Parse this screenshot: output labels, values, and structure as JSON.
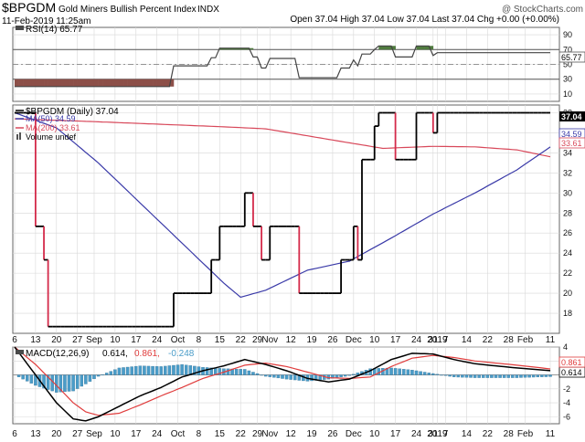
{
  "header": {
    "symbol": "$BPGDM",
    "name": "Gold Miners Bullish Percent Index",
    "exchange": "INDX",
    "watermark": "@ StockCharts.com",
    "datetime": "11-Feb-2019 11:25am",
    "quote": "Open 37.04  High 37.04  Low 37.04  Last 37.04  Chg +0.00 (+0.00%)"
  },
  "colors": {
    "price": "#000000",
    "price_down": "#d42a4a",
    "ma50": "#3a3aa8",
    "ma200": "#d8485a",
    "macd_line": "#000000",
    "macd_signal": "#e03c3c",
    "histogram": "#4a9cc8",
    "rsi_line": "#444444",
    "rsi_overbought_fill": "#4f7a3e",
    "rsi_oversold_fill": "#8c4f48",
    "grid": "#d8d8d8",
    "axis_text": "#111111"
  },
  "x_axis": {
    "ticks": [
      {
        "i": 0,
        "label": "6"
      },
      {
        "i": 5,
        "label": "13"
      },
      {
        "i": 10,
        "label": "20"
      },
      {
        "i": 15,
        "label": "27"
      },
      {
        "i": 19,
        "label": "Sep"
      },
      {
        "i": 24,
        "label": "10"
      },
      {
        "i": 29,
        "label": "17"
      },
      {
        "i": 34,
        "label": "24"
      },
      {
        "i": 39,
        "label": "Oct"
      },
      {
        "i": 44,
        "label": "8"
      },
      {
        "i": 49,
        "label": "15"
      },
      {
        "i": 54,
        "label": "22"
      },
      {
        "i": 58,
        "label": "29"
      },
      {
        "i": 61,
        "label": "Nov"
      },
      {
        "i": 66,
        "label": "12"
      },
      {
        "i": 71,
        "label": "19"
      },
      {
        "i": 76,
        "label": "26"
      },
      {
        "i": 81,
        "label": "Dec"
      },
      {
        "i": 86,
        "label": "10"
      },
      {
        "i": 91,
        "label": "17"
      },
      {
        "i": 96,
        "label": "24"
      },
      {
        "i": 100,
        "label": "31"
      },
      {
        "i": 101,
        "label": "2019"
      },
      {
        "i": 103,
        "label": "7"
      },
      {
        "i": 108,
        "label": "14"
      },
      {
        "i": 113,
        "label": "22"
      },
      {
        "i": 118,
        "label": "28"
      },
      {
        "i": 122,
        "label": "Feb"
      },
      {
        "i": 128,
        "label": "11"
      }
    ]
  },
  "rsi_panel": {
    "label": "RSI(14) 65.77",
    "ticks": [
      90,
      70,
      50,
      30,
      10
    ],
    "current": "65.77",
    "overbought": 70,
    "oversold": 30
  },
  "price_panel": {
    "legend_price": "$BPGDM (Daily) 37.04",
    "legend_ma50": "MA(50) 34.59",
    "legend_ma200": "MA(200) 33.61",
    "legend_volume": "Volume undef",
    "ticks": [
      38,
      36,
      34,
      32,
      30,
      28,
      26,
      24,
      22,
      20,
      18
    ],
    "tag_price": "37.04",
    "tag_ma50": "34.59",
    "tag_ma200": "33.61"
  },
  "macd_panel": {
    "label_prefix": "MACD(12,26,9)",
    "label_macd": "0.614,",
    "label_signal": "0.861,",
    "label_hist": "-0.248",
    "ticks": [
      4,
      2,
      -2,
      -4,
      -6
    ],
    "tag_macd": "0.614",
    "tag_signal": "0.861"
  },
  "chart_data": {
    "type": "line",
    "title": "$BPGDM Gold Miners Bullish Percent Index INDX",
    "n_sessions": 129,
    "price": {
      "name": "$BPGDM (Daily)",
      "ylim": [
        16,
        38.5
      ],
      "steps": [
        [
          0,
          38
        ],
        [
          5,
          26.67
        ],
        [
          7,
          23.33
        ],
        [
          8,
          16.67
        ],
        [
          38,
          20
        ],
        [
          47,
          23.33
        ],
        [
          49,
          26.67
        ],
        [
          55,
          30
        ],
        [
          57,
          26.67
        ],
        [
          59,
          23.33
        ],
        [
          61,
          26.67
        ],
        [
          68,
          20
        ],
        [
          78,
          23.33
        ],
        [
          81,
          26.67
        ],
        [
          82,
          23.33
        ],
        [
          83,
          33.33
        ],
        [
          86,
          36.67
        ],
        [
          87,
          38
        ],
        [
          91,
          33.33
        ],
        [
          96,
          38
        ],
        [
          100,
          36
        ],
        [
          101,
          38
        ]
      ]
    },
    "ma50": {
      "name": "MA(50)",
      "points": [
        [
          0,
          38
        ],
        [
          10,
          36.5
        ],
        [
          20,
          33
        ],
        [
          30,
          29
        ],
        [
          40,
          25
        ],
        [
          50,
          21
        ],
        [
          54,
          19.6
        ],
        [
          60,
          20.3
        ],
        [
          70,
          22.3
        ],
        [
          80,
          23.2
        ],
        [
          90,
          25.5
        ],
        [
          100,
          27.9
        ],
        [
          110,
          30
        ],
        [
          120,
          32.3
        ],
        [
          128,
          34.59
        ]
      ]
    },
    "ma200": {
      "name": "MA(200)",
      "points": [
        [
          0,
          37.4
        ],
        [
          20,
          37.1
        ],
        [
          50,
          36.6
        ],
        [
          60,
          36.4
        ],
        [
          70,
          35.7
        ],
        [
          80,
          35
        ],
        [
          88,
          34.45
        ],
        [
          100,
          34.65
        ],
        [
          110,
          34.6
        ],
        [
          120,
          34.3
        ],
        [
          128,
          33.61
        ]
      ]
    },
    "rsi": {
      "name": "RSI(14)",
      "ylim": [
        0,
        100
      ],
      "steps": [
        [
          0,
          20
        ],
        [
          38,
          48
        ],
        [
          47,
          59
        ],
        [
          49,
          72
        ],
        [
          57,
          60
        ],
        [
          59,
          45
        ],
        [
          61,
          58
        ],
        [
          68,
          32
        ],
        [
          78,
          45
        ],
        [
          81,
          56
        ],
        [
          82,
          48
        ],
        [
          83,
          64
        ],
        [
          86,
          70
        ],
        [
          87,
          75
        ],
        [
          91,
          60
        ],
        [
          96,
          75
        ],
        [
          100,
          62
        ],
        [
          101,
          65.77
        ]
      ]
    },
    "macd": {
      "name": "MACD(12,26,9)",
      "ylim": [
        -7,
        4
      ],
      "macd": [
        [
          0,
          4
        ],
        [
          5,
          0
        ],
        [
          10,
          -4
        ],
        [
          14,
          -6.3
        ],
        [
          17,
          -6.6
        ],
        [
          20,
          -6
        ],
        [
          25,
          -4.5
        ],
        [
          30,
          -3
        ],
        [
          35,
          -1.8
        ],
        [
          40,
          -0.3
        ],
        [
          45,
          0.6
        ],
        [
          50,
          1.3
        ],
        [
          55,
          2.2
        ],
        [
          60,
          1.5
        ],
        [
          65,
          0.6
        ],
        [
          70,
          -0.5
        ],
        [
          75,
          -1
        ],
        [
          80,
          -0.6
        ],
        [
          85,
          0.6
        ],
        [
          90,
          2.2
        ],
        [
          95,
          3.1
        ],
        [
          100,
          3
        ],
        [
          105,
          2.2
        ],
        [
          110,
          1.6
        ],
        [
          120,
          1
        ],
        [
          128,
          0.614
        ]
      ],
      "signal": [
        [
          0,
          4
        ],
        [
          5,
          1.5
        ],
        [
          10,
          -1.5
        ],
        [
          14,
          -4
        ],
        [
          17,
          -5.3
        ],
        [
          20,
          -5.8
        ],
        [
          25,
          -5.5
        ],
        [
          30,
          -4.3
        ],
        [
          35,
          -3
        ],
        [
          40,
          -1.8
        ],
        [
          45,
          -0.5
        ],
        [
          50,
          0.4
        ],
        [
          55,
          1.4
        ],
        [
          60,
          1.7
        ],
        [
          65,
          1.2
        ],
        [
          70,
          0.4
        ],
        [
          75,
          -0.4
        ],
        [
          80,
          -0.5
        ],
        [
          85,
          -0.3
        ],
        [
          90,
          1.2
        ],
        [
          95,
          2.4
        ],
        [
          100,
          2.8
        ],
        [
          105,
          2.5
        ],
        [
          110,
          2
        ],
        [
          120,
          1.4
        ],
        [
          128,
          0.861
        ]
      ],
      "hist_range": [
        1,
        128
      ]
    }
  }
}
